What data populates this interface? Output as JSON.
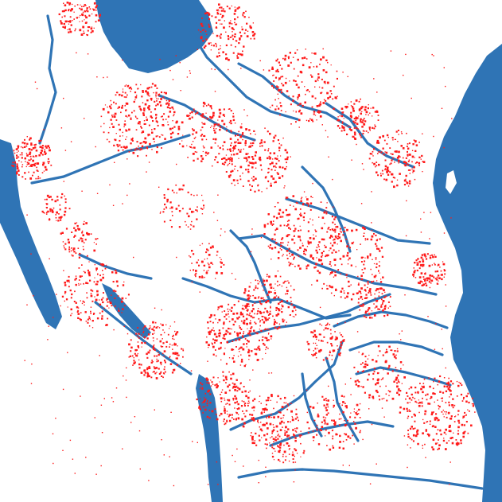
{
  "map": {
    "colors": {
      "background": "#ffffff",
      "water": "#2f74b5",
      "points": "#ff1a1a"
    },
    "layers": [
      "lakes",
      "ocean",
      "rivers",
      "point-observations"
    ]
  }
}
